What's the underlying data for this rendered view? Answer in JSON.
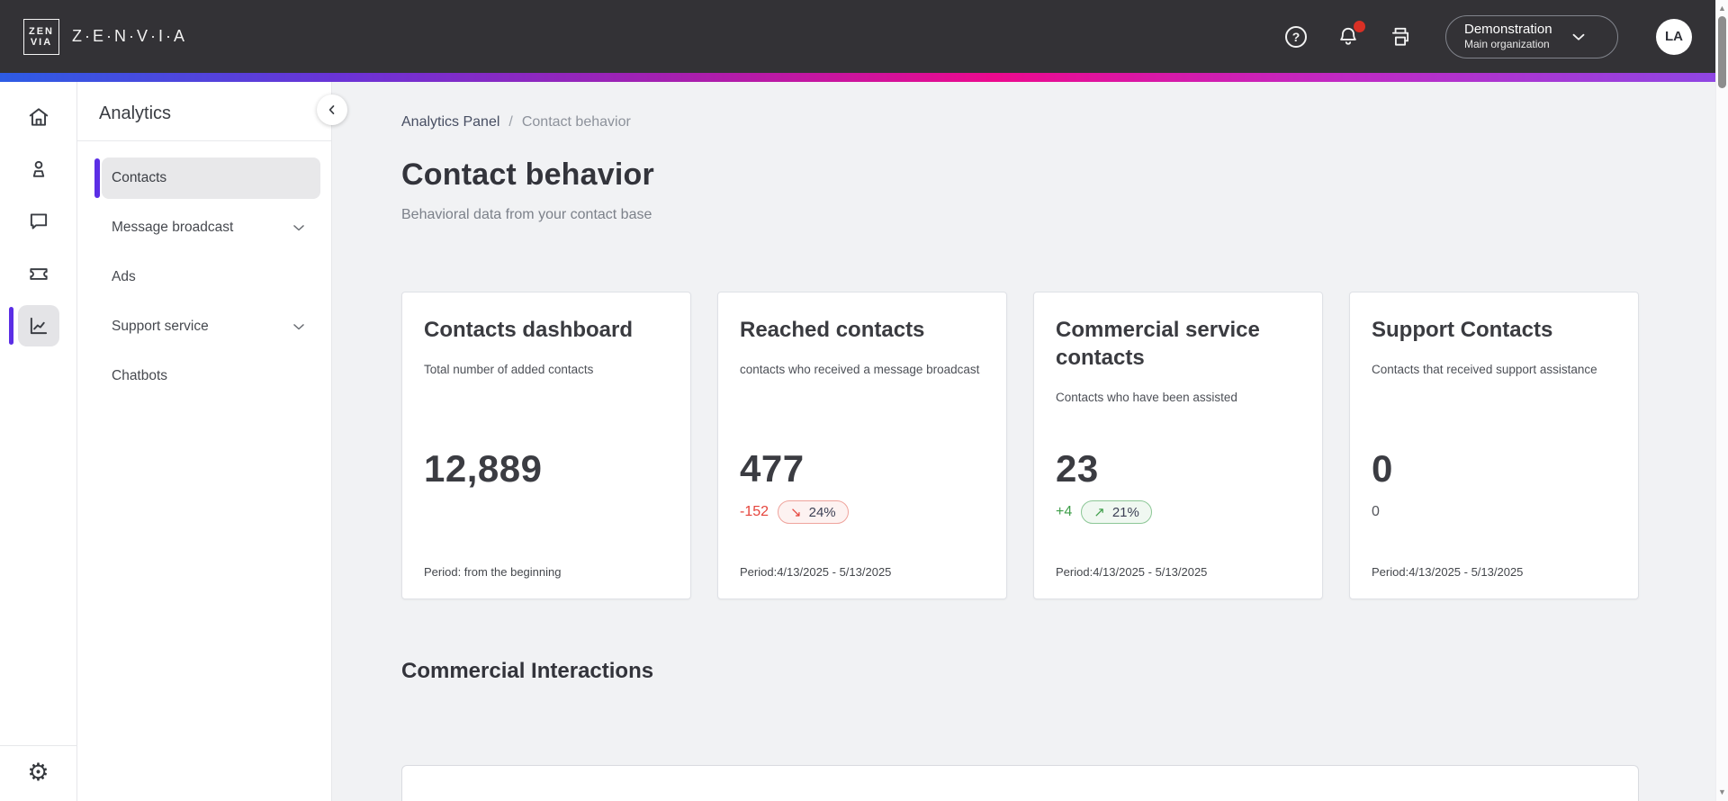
{
  "header": {
    "brand": "Z·E·N·V·I·A",
    "logo_lines": [
      "ZEN",
      "VIA"
    ],
    "icons": [
      {
        "name": "help-icon"
      },
      {
        "name": "notifications-icon",
        "badge": true
      },
      {
        "name": "print-icon"
      }
    ],
    "org": {
      "name": "Demonstration",
      "subtitle": "Main organization"
    },
    "avatar_initials": "LA"
  },
  "rail": {
    "items": [
      {
        "icon": "home-icon",
        "active": false
      },
      {
        "icon": "contacts-icon",
        "active": false
      },
      {
        "icon": "conversations-icon",
        "active": false
      },
      {
        "icon": "ticket-icon",
        "active": false
      },
      {
        "icon": "analytics-icon",
        "active": true
      }
    ],
    "bottom": {
      "icon": "settings-gear-icon",
      "glyph": "⚙"
    }
  },
  "sidebar": {
    "title": "Analytics",
    "items": [
      {
        "label": "Contacts",
        "active": true,
        "chevron": false
      },
      {
        "label": "Message broadcast",
        "active": false,
        "chevron": true
      },
      {
        "label": "Ads",
        "active": false,
        "chevron": false
      },
      {
        "label": "Support service",
        "active": false,
        "chevron": true
      },
      {
        "label": "Chatbots",
        "active": false,
        "chevron": false
      }
    ]
  },
  "breadcrumb": {
    "parent": "Analytics Panel",
    "separator": "/",
    "current": "Contact behavior"
  },
  "page": {
    "title": "Contact behavior",
    "subtitle": "Behavioral data from your contact base"
  },
  "cards": [
    {
      "title": "Contacts dashboard",
      "description": "Total number of added contacts",
      "value": "12,889",
      "period": "Period: from the beginning"
    },
    {
      "title": "Reached contacts",
      "description": "contacts who received a message broadcast",
      "value": "477",
      "delta": "-152",
      "trend": "down",
      "badge_pct": "24%",
      "period": "Period:4/13/2025 - 5/13/2025"
    },
    {
      "title": "Commercial service contacts",
      "description": "Contacts who have been assisted",
      "value": "23",
      "delta": "+4",
      "trend": "up",
      "badge_pct": "21%",
      "period": "Period:4/13/2025 - 5/13/2025"
    },
    {
      "title": "Support Contacts",
      "description": "Contacts that received support assistance",
      "value": "0",
      "delta": "0",
      "trend": "neutral",
      "period": "Period:4/13/2025 - 5/13/2025"
    }
  ],
  "section": {
    "title": "Commercial Interactions"
  },
  "glyphs": {
    "up_arrow": "↗",
    "down_arrow": "↘",
    "scroll_up": "▲",
    "scroll_down": "▼"
  },
  "colors": {
    "header_bg": "#333236",
    "accent_purple": "#5b2ee5",
    "gradient": [
      "#2d5ce5",
      "#6b33d6",
      "#a81fae",
      "#ec0a8e",
      "#c129c3",
      "#8f46e3"
    ],
    "negative_text": "#e5443c",
    "negative_border": "#efa39c",
    "negative_bg": "#fdf2f1",
    "positive_text": "#3f9e4a",
    "positive_border": "#8cc796",
    "positive_bg": "#f0f8f1",
    "neutral_delta": "#54565c",
    "badge_pct_text": "#3b3f54",
    "notification_badge": "#d93025"
  }
}
